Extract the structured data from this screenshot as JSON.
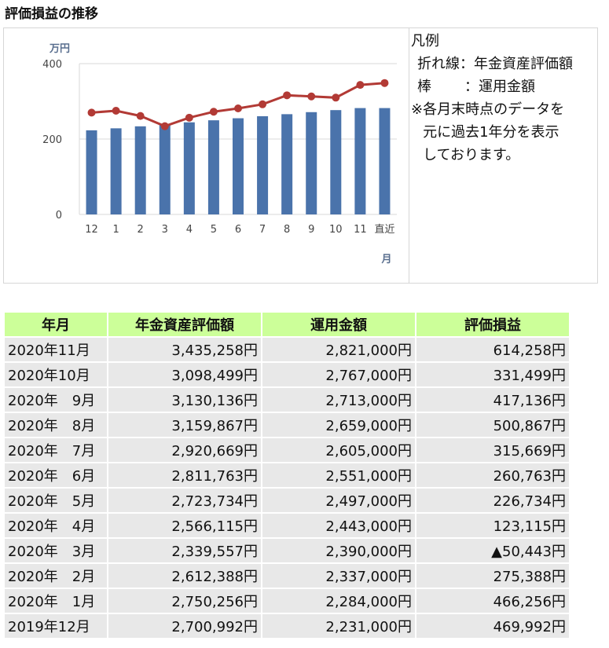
{
  "page": {
    "title": "評価損益の推移"
  },
  "chart_data": {
    "type": "bar+line",
    "categories": [
      "12",
      "1",
      "2",
      "3",
      "4",
      "5",
      "6",
      "7",
      "8",
      "9",
      "10",
      "11",
      "直近"
    ],
    "series": [
      {
        "kind": "bar",
        "values": [
          223.1,
          228.4,
          233.7,
          239.0,
          244.3,
          249.7,
          255.1,
          260.5,
          265.9,
          271.3,
          276.7,
          282.1,
          282.1
        ],
        "color": "#4a73ab"
      },
      {
        "kind": "line",
        "values": [
          270.1,
          275.0,
          261.2,
          234.0,
          256.6,
          272.4,
          281.2,
          292.1,
          316.0,
          313.0,
          309.8,
          343.5,
          348.5
        ],
        "color": "#b23a35"
      }
    ],
    "ylim": [
      0,
      400
    ],
    "yticks": [
      "0",
      "200",
      "400"
    ],
    "ylabel": "万円",
    "xlabel": "月",
    "grid": true
  },
  "legend": {
    "title": "凡例",
    "line_item": "折れ線：年金資産評価額",
    "bar_label": "棒",
    "bar_item": "：運用金額",
    "note_mark": "※",
    "note_lines": [
      "各月末時点のデータを",
      "元に過去1年分を表示",
      "しております。"
    ]
  },
  "table": {
    "headers": [
      "年月",
      "年金資産評価額",
      "運用金額",
      "評価損益"
    ],
    "rows": [
      [
        "2020年11月",
        "3,435,258円",
        "2,821,000円",
        "614,258円"
      ],
      [
        "2020年10月",
        "3,098,499円",
        "2,767,000円",
        "331,499円"
      ],
      [
        "2020年　9月",
        "3,130,136円",
        "2,713,000円",
        "417,136円"
      ],
      [
        "2020年　8月",
        "3,159,867円",
        "2,659,000円",
        "500,867円"
      ],
      [
        "2020年　7月",
        "2,920,669円",
        "2,605,000円",
        "315,669円"
      ],
      [
        "2020年　6月",
        "2,811,763円",
        "2,551,000円",
        "260,763円"
      ],
      [
        "2020年　5月",
        "2,723,734円",
        "2,497,000円",
        "226,734円"
      ],
      [
        "2020年　4月",
        "2,566,115円",
        "2,443,000円",
        "123,115円"
      ],
      [
        "2020年　3月",
        "2,339,557円",
        "2,390,000円",
        "▲50,443円"
      ],
      [
        "2020年　2月",
        "2,612,388円",
        "2,337,000円",
        "275,388円"
      ],
      [
        "2020年　1月",
        "2,750,256円",
        "2,284,000円",
        "466,256円"
      ],
      [
        "2019年12月",
        "2,700,992円",
        "2,231,000円",
        "469,992円"
      ]
    ]
  }
}
